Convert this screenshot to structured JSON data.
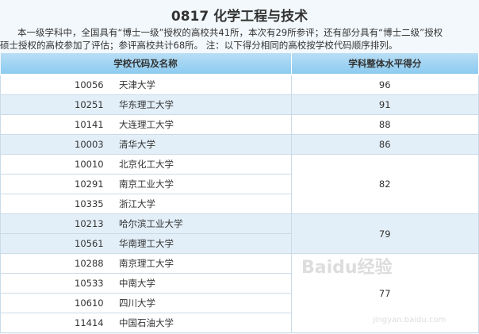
{
  "title": "0817 化学工程与技术",
  "intro_line1": "本一级学科中，全国具有“博士一级”授权的高校共41所，本次有29所参评；还有部分具有“博士二级”授权",
  "intro_line2": "硕士授权的高校参加了评估；参评高校共计68所。 注：以下得分相同的高校按学校代码顺序排列。",
  "headers": [
    "学校代码及名称",
    "学科整体水平得分"
  ],
  "rows": [
    {
      "code": "10056",
      "name": "天津大学"
    },
    {
      "code": "10251",
      "name": "华东理工大学"
    },
    {
      "code": "10141",
      "name": "大连理工大学"
    },
    {
      "code": "10003",
      "name": "清华大学"
    },
    {
      "code": "10010",
      "name": "北京化工大学"
    },
    {
      "code": "10291",
      "name": "南京工业大学"
    },
    {
      "code": "10335",
      "name": "浙江大学"
    },
    {
      "code": "10213",
      "name": "哈尔滨工业大学"
    },
    {
      "code": "10561",
      "name": "华南理工大学"
    },
    {
      "code": "10288",
      "name": "南京理工大学"
    },
    {
      "code": "10533",
      "name": "中南大学"
    },
    {
      "code": "10610",
      "name": "四川大学"
    },
    {
      "code": "11414",
      "name": "中国石油大学"
    }
  ],
  "scores": [
    "96",
    "91",
    "88",
    "86",
    "82",
    "79",
    "77"
  ],
  "watermark": {
    "logo": "Baidu经验",
    "url": "jingyan.baidu.com"
  }
}
